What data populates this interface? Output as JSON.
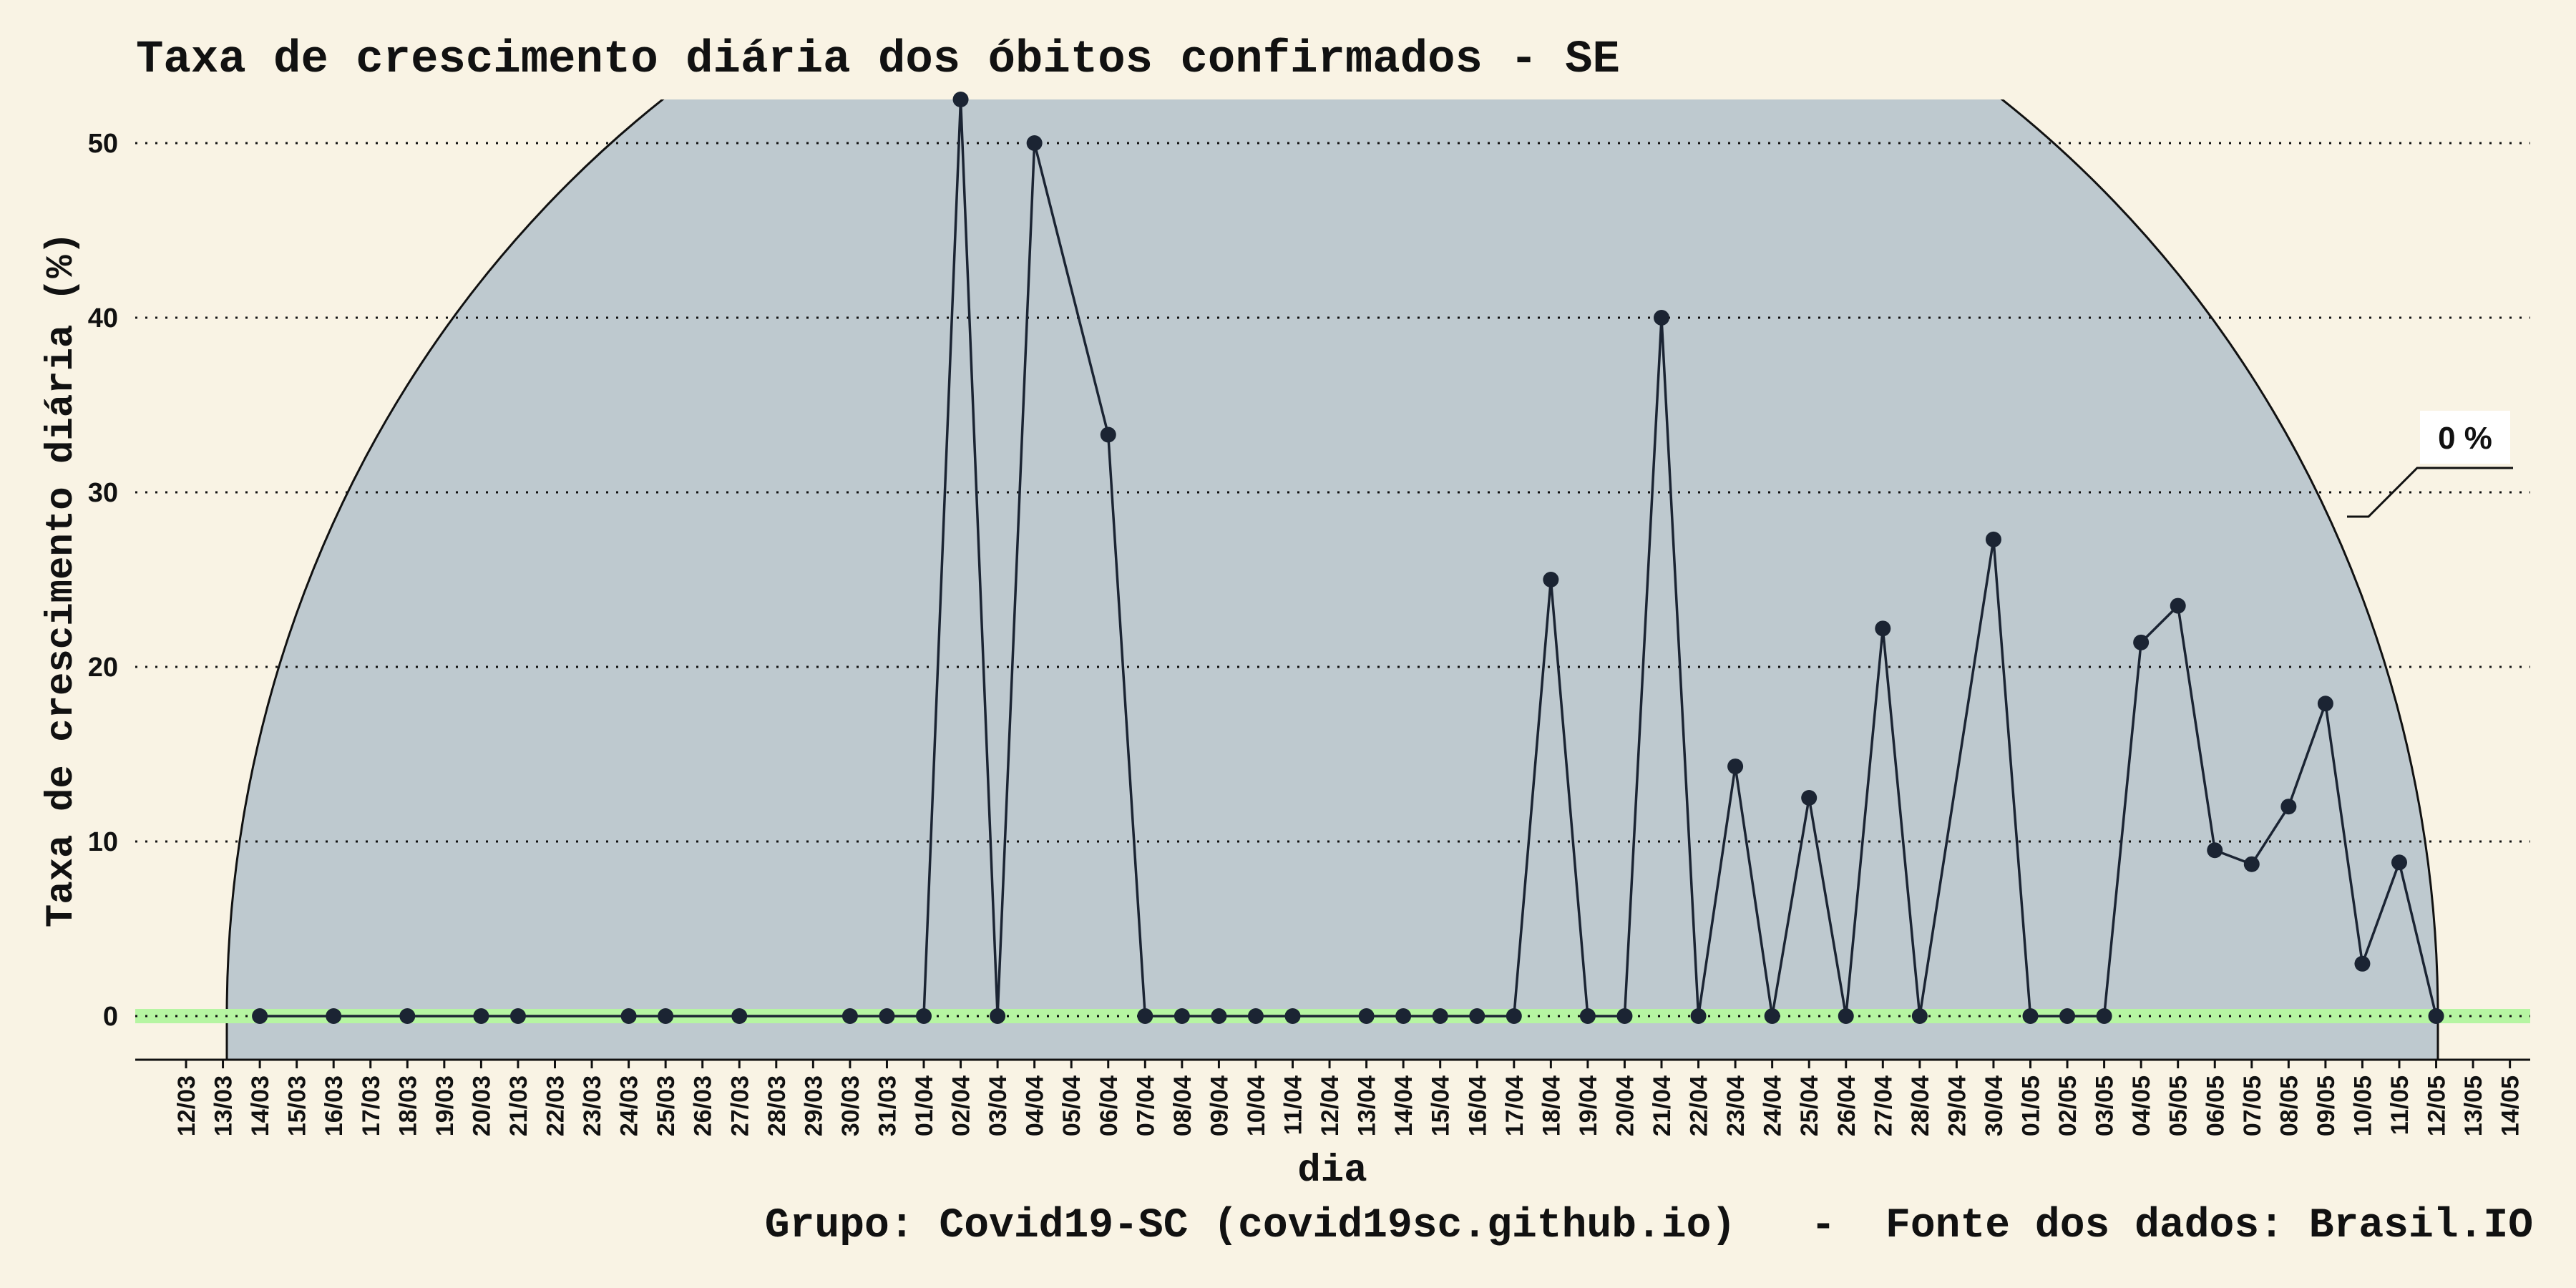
{
  "chart_data": {
    "type": "line",
    "title": "Taxa de crescimento diária dos óbitos confirmados - SE",
    "xlabel": "dia",
    "ylabel": "Taxa de crescimento diária (%)",
    "caption": "Grupo: Covid19-SC (covid19sc.github.io)   -  Fonte dos dados: Brasil.IO",
    "callout": "0 %",
    "ylim": [
      -2.5,
      52.5
    ],
    "yticks": [
      0,
      10,
      20,
      30,
      40,
      50
    ],
    "grid": "horizontal dotted",
    "colors": {
      "background": "#f9f3e4",
      "panel_fill": "#bec9cf",
      "line": "#1b2433",
      "zero_band": "#b6f5a2"
    },
    "categories": [
      "12/03",
      "13/03",
      "14/03",
      "15/03",
      "16/03",
      "17/03",
      "18/03",
      "19/03",
      "20/03",
      "21/03",
      "22/03",
      "23/03",
      "24/03",
      "25/03",
      "26/03",
      "27/03",
      "28/03",
      "29/03",
      "30/03",
      "31/03",
      "01/04",
      "02/04",
      "03/04",
      "04/04",
      "05/04",
      "06/04",
      "07/04",
      "08/04",
      "09/04",
      "10/04",
      "11/04",
      "12/04",
      "13/04",
      "14/04",
      "15/04",
      "16/04",
      "17/04",
      "18/04",
      "19/04",
      "20/04",
      "21/04",
      "22/04",
      "23/04",
      "24/04",
      "25/04",
      "26/04",
      "27/04",
      "28/04",
      "29/04",
      "30/04",
      "01/05",
      "02/05",
      "03/05",
      "04/05",
      "05/05",
      "06/05",
      "07/05",
      "08/05",
      "09/05",
      "10/05",
      "11/05",
      "12/05",
      "13/05",
      "14/05"
    ],
    "series": [
      {
        "points": [
          {
            "x": "14/03",
            "y": 0
          },
          {
            "x": "16/03",
            "y": 0
          },
          {
            "x": "18/03",
            "y": 0
          },
          {
            "x": "20/03",
            "y": 0
          },
          {
            "x": "21/03",
            "y": 0
          },
          {
            "x": "24/03",
            "y": 0
          },
          {
            "x": "25/03",
            "y": 0
          },
          {
            "x": "27/03",
            "y": 0
          },
          {
            "x": "30/03",
            "y": 0
          },
          {
            "x": "31/03",
            "y": 0
          },
          {
            "x": "01/04",
            "y": 0
          },
          {
            "x": "02/04",
            "y": 52.5
          },
          {
            "x": "03/04",
            "y": 0
          },
          {
            "x": "04/04",
            "y": 50
          },
          {
            "x": "06/04",
            "y": 33.3
          },
          {
            "x": "07/04",
            "y": 0
          },
          {
            "x": "08/04",
            "y": 0
          },
          {
            "x": "09/04",
            "y": 0
          },
          {
            "x": "10/04",
            "y": 0
          },
          {
            "x": "11/04",
            "y": 0
          },
          {
            "x": "13/04",
            "y": 0
          },
          {
            "x": "14/04",
            "y": 0
          },
          {
            "x": "15/04",
            "y": 0
          },
          {
            "x": "16/04",
            "y": 0
          },
          {
            "x": "17/04",
            "y": 0
          },
          {
            "x": "18/04",
            "y": 25
          },
          {
            "x": "19/04",
            "y": 0
          },
          {
            "x": "20/04",
            "y": 0
          },
          {
            "x": "21/04",
            "y": 40
          },
          {
            "x": "22/04",
            "y": 0
          },
          {
            "x": "23/04",
            "y": 14.3
          },
          {
            "x": "24/04",
            "y": 0
          },
          {
            "x": "25/04",
            "y": 12.5
          },
          {
            "x": "26/04",
            "y": 0
          },
          {
            "x": "27/04",
            "y": 22.2
          },
          {
            "x": "28/04",
            "y": 0
          },
          {
            "x": "30/04",
            "y": 27.3
          },
          {
            "x": "01/05",
            "y": 0
          },
          {
            "x": "02/05",
            "y": 0
          },
          {
            "x": "03/05",
            "y": 0
          },
          {
            "x": "04/05",
            "y": 21.4
          },
          {
            "x": "05/05",
            "y": 23.5
          },
          {
            "x": "06/05",
            "y": 9.5
          },
          {
            "x": "07/05",
            "y": 8.7
          },
          {
            "x": "08/05",
            "y": 12
          },
          {
            "x": "09/05",
            "y": 17.9
          },
          {
            "x": "10/05",
            "y": 3
          },
          {
            "x": "11/05",
            "y": 8.8
          },
          {
            "x": "12/05",
            "y": 0
          }
        ]
      }
    ]
  }
}
